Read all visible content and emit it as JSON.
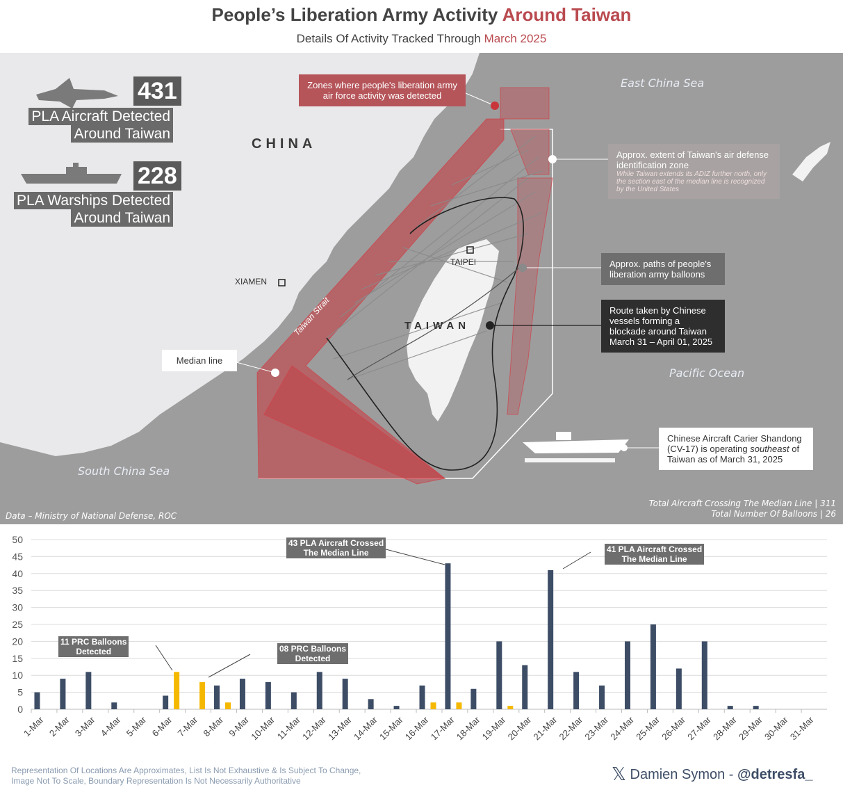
{
  "header": {
    "title_main": "People’s Liberation Army Activity ",
    "title_accent": "Around Taiwan",
    "subtitle_main": "Details Of Activity Tracked Through ",
    "subtitle_accent": "March 2025"
  },
  "stats": {
    "aircraft_count": "431",
    "aircraft_label_1": "PLA Aircraft Detected",
    "aircraft_label_2": "Around Taiwan",
    "warship_count": "228",
    "warship_label_1": "PLA Warships Detected",
    "warship_label_2": "Around Taiwan"
  },
  "map": {
    "china_label": "CHINA",
    "taiwan_label": "TAIWAN",
    "taipei_label": "TAIPEI",
    "xiamen_label": "XIAMEN",
    "strait_label": "Taiwan Strait",
    "east_china_sea": "East China Sea",
    "pacific_ocean": "Pacific Ocean",
    "south_china_sea": "South China Sea",
    "zones_label": "Zones where people's liberation army air force activity was detected",
    "adiz_label": "Approx. extent of Taiwan's air defense identification zone",
    "adiz_note": "While Taiwan extends its ADIZ further north, only the section east of the median line is recognized by the United States",
    "balloons_label": "Approx. paths of people's liberation army balloons",
    "blockade_label": "Route taken by Chinese vessels forming a blockade around Taiwan March 31 – April 01, 2025",
    "median_label": "Median line",
    "carrier_label_1": "Chinese Aircraft Carier Shandong (CV-17) is operating ",
    "carrier_label_em": "southeast",
    "carrier_label_2": " of Taiwan as of March 31, 2025",
    "data_source": "Data – Ministry of National Defense, ROC",
    "total_median": "Total Aircraft Crossing The Median Line | 311",
    "total_balloons": "Total Number Of Balloons | 26"
  },
  "chart_data": {
    "type": "bar",
    "categories": [
      "1-Mar",
      "2-Mar",
      "3-Mar",
      "4-Mar",
      "5-Mar",
      "6-Mar",
      "7-Mar",
      "8-Mar",
      "9-Mar",
      "10-Mar",
      "11-Mar",
      "12-Mar",
      "13-Mar",
      "14-Mar",
      "15-Mar",
      "16-Mar",
      "17-Mar",
      "18-Mar",
      "19-Mar",
      "20-Mar",
      "21-Mar",
      "22-Mar",
      "23-Mar",
      "24-Mar",
      "25-Mar",
      "26-Mar",
      "27-Mar",
      "28-Mar",
      "29-Mar",
      "30-Mar",
      "31-Mar"
    ],
    "series": [
      {
        "name": "Aircraft Crossing Median Line",
        "color": "#3d4d66",
        "values": [
          5,
          9,
          11,
          2,
          0,
          4,
          0,
          7,
          9,
          8,
          5,
          11,
          9,
          3,
          1,
          7,
          43,
          6,
          20,
          13,
          41,
          11,
          7,
          20,
          25,
          12,
          20,
          1,
          1,
          0,
          0
        ]
      },
      {
        "name": "PRC Balloons",
        "color": "#f5b800",
        "values": [
          0,
          0,
          0,
          0,
          0,
          11,
          8,
          2,
          0,
          0,
          0,
          0,
          0,
          0,
          0,
          2,
          2,
          0,
          1,
          0,
          0,
          0,
          0,
          0,
          0,
          0,
          0,
          0,
          0,
          0,
          0
        ]
      }
    ],
    "ylim": [
      0,
      50
    ],
    "yticks": [
      0,
      5,
      10,
      15,
      20,
      25,
      30,
      35,
      40,
      45,
      50
    ],
    "annotations": [
      {
        "text_1": "11 PRC Balloons",
        "text_2": "Detected"
      },
      {
        "text_1": "08 PRC Balloons",
        "text_2": "Detected"
      },
      {
        "text_1": "43 PLA Aircraft Crossed",
        "text_2": "The Median Line"
      },
      {
        "text_1": "41 PLA Aircraft Crossed",
        "text_2": "The Median Line"
      }
    ]
  },
  "footer": {
    "disclaimer_1": "Representation Of Locations Are Approximates, List Is Not Exhaustive & Is Subject To Change,",
    "disclaimer_2": "Image Not To Scale, Boundary Representation Is Not Necessarily Authoritative",
    "credit_name": "Damien Symon - ",
    "credit_handle": "@detresfa_"
  },
  "colors": {
    "accent": "#b94a4f",
    "bar": "#3d4d66",
    "balloon": "#f5b800",
    "zone": "#c8353b"
  }
}
